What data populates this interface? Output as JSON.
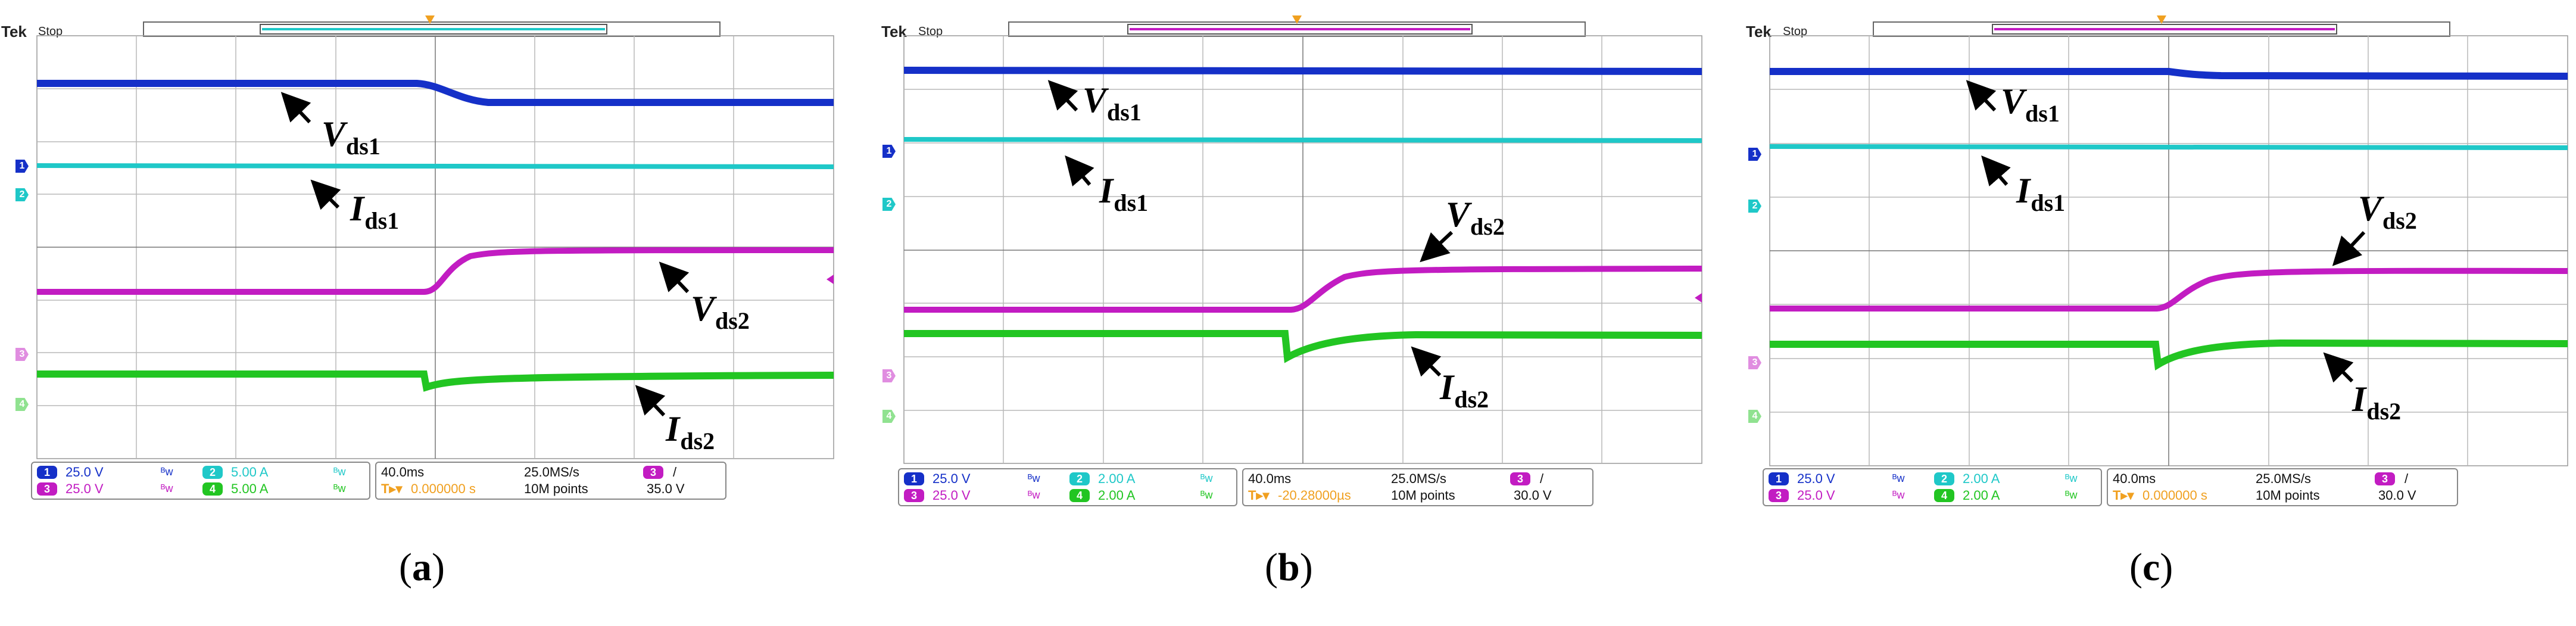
{
  "colors": {
    "ch1": "#1530c8",
    "ch2": "#1fc8c8",
    "ch3": "#c21cc2",
    "ch4": "#22c522",
    "grid": "#b8b8b8",
    "trigger": "#f0a020",
    "frame": "#666666"
  },
  "scopes": [
    {
      "id": "a",
      "brand": "Tek",
      "state": "Stop",
      "window_color": "#1fc8c8",
      "labels": [
        {
          "main": "V",
          "sub": "ds1"
        },
        {
          "main": "I",
          "sub": "ds1"
        },
        {
          "main": "V",
          "sub": "ds2"
        },
        {
          "main": "I",
          "sub": "ds2"
        }
      ],
      "channels": {
        "ch1": {
          "num": "1",
          "scale": "25.0 V",
          "bw": "ᴮw"
        },
        "ch2": {
          "num": "2",
          "scale": "5.00 A",
          "bw": "ᴮw"
        },
        "ch3": {
          "num": "3",
          "scale": "25.0 V",
          "bw": "ᴮw"
        },
        "ch4": {
          "num": "4",
          "scale": "5.00 A",
          "bw": "ᴮw"
        }
      },
      "horizontal": {
        "timebase": "40.0ms",
        "rate": "25.0MS/s",
        "trig_pos": "0.000000 s",
        "points": "10M points"
      },
      "trigger": {
        "source": "3",
        "slope": "/",
        "level": "35.0 V"
      },
      "caption": "a"
    },
    {
      "id": "b",
      "brand": "Tek",
      "state": "Stop",
      "window_color": "#c21cc2",
      "labels": [
        {
          "main": "V",
          "sub": "ds1"
        },
        {
          "main": "I",
          "sub": "ds1"
        },
        {
          "main": "V",
          "sub": "ds2"
        },
        {
          "main": "I",
          "sub": "ds2"
        }
      ],
      "channels": {
        "ch1": {
          "num": "1",
          "scale": "25.0 V",
          "bw": "ᴮw"
        },
        "ch2": {
          "num": "2",
          "scale": "2.00 A",
          "bw": "ᴮw"
        },
        "ch3": {
          "num": "3",
          "scale": "25.0 V",
          "bw": "ᴮw"
        },
        "ch4": {
          "num": "4",
          "scale": "2.00 A",
          "bw": "ᴮw"
        }
      },
      "horizontal": {
        "timebase": "40.0ms",
        "rate": "25.0MS/s",
        "trig_pos": "-20.28000µs",
        "points": "10M points"
      },
      "trigger": {
        "source": "3",
        "slope": "/",
        "level": "30.0 V"
      },
      "caption": "b"
    },
    {
      "id": "c",
      "brand": "Tek",
      "state": "Stop",
      "window_color": "#c21cc2",
      "labels": [
        {
          "main": "V",
          "sub": "ds1"
        },
        {
          "main": "I",
          "sub": "ds1"
        },
        {
          "main": "V",
          "sub": "ds2"
        },
        {
          "main": "I",
          "sub": "ds2"
        }
      ],
      "channels": {
        "ch1": {
          "num": "1",
          "scale": "25.0 V",
          "bw": "ᴮw"
        },
        "ch2": {
          "num": "2",
          "scale": "2.00 A",
          "bw": "ᴮw"
        },
        "ch3": {
          "num": "3",
          "scale": "25.0 V",
          "bw": "ᴮw"
        },
        "ch4": {
          "num": "4",
          "scale": "2.00 A",
          "bw": "ᴮw"
        }
      },
      "horizontal": {
        "timebase": "40.0ms",
        "rate": "25.0MS/s",
        "trig_pos": "0.000000 s",
        "points": "10M points"
      },
      "trigger": {
        "source": "3",
        "slope": "/",
        "level": "30.0 V"
      },
      "caption": "c"
    }
  ]
}
